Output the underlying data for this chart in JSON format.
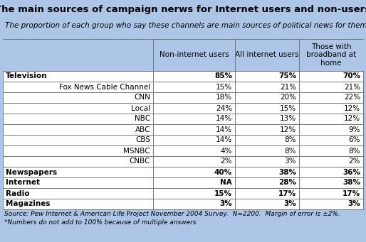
{
  "title": "The main sources of campaign nerws for Internet users and non-users",
  "subtitle": "The proportion of each group who say these channels are main sources of political news for them*",
  "col_headers": [
    "",
    "Non-internet users",
    "All internet users",
    "Those with\nbroadband at\nhome"
  ],
  "rows": [
    [
      "Television",
      "85%",
      "75%",
      "70%"
    ],
    [
      "Fox News Cable Channel",
      "15%",
      "21%",
      "21%"
    ],
    [
      "CNN",
      "18%",
      "20%",
      "22%"
    ],
    [
      "Local",
      "24%",
      "15%",
      "12%"
    ],
    [
      "NBC",
      "14%",
      "13%",
      "12%"
    ],
    [
      "ABC",
      "14%",
      "12%",
      "9%"
    ],
    [
      "CBS",
      "14%",
      "8%",
      "6%"
    ],
    [
      "MSNBC",
      "4%",
      "8%",
      "8%"
    ],
    [
      "CNBC",
      "2%",
      "3%",
      "2%"
    ],
    [
      "Newspapers",
      "40%",
      "38%",
      "36%"
    ],
    [
      "Internet",
      "NA",
      "28%",
      "38%"
    ],
    [
      "Radio",
      "15%",
      "17%",
      "17%"
    ],
    [
      "Magazines",
      "3%",
      "3%",
      "3%"
    ]
  ],
  "indented_rows": [
    "Fox News Cable Channel",
    "CNN",
    "Local",
    "NBC",
    "ABC",
    "CBS",
    "MSNBC",
    "CNBC"
  ],
  "bold_rows": [
    "Television",
    "Newspapers",
    "Internet",
    "Radio",
    "Magazines"
  ],
  "footer1": "Source: Pew Internet & American Life Project November 2004 Survey.  N=2200.  Margin of error is ±2%.",
  "footer2": "*Numbers do not add to 100% because of multiple answers",
  "bg_color": "#adc6e8",
  "row_bg_white": "#ffffff",
  "title_fontsize": 9.5,
  "subtitle_fontsize": 7.5,
  "header_fontsize": 7.5,
  "cell_fontsize": 7.5,
  "footer_fontsize": 6.5
}
